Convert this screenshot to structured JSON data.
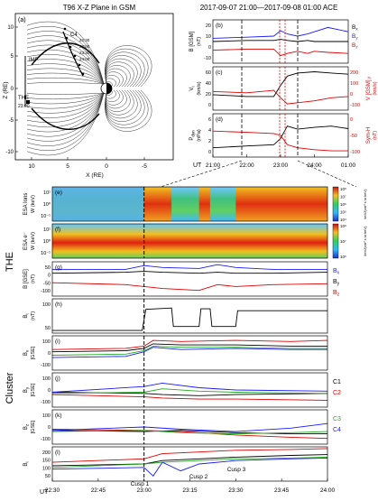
{
  "panel_a": {
    "title": "T96  X-Z Plane in GSM",
    "label": "(a)",
    "ylabel": "Z (RE)",
    "xlabel": "X (RE)",
    "xticks": [
      "10",
      "5",
      "0",
      "-5"
    ],
    "yticks": [
      "10",
      "5",
      "0",
      "-5",
      "-10"
    ],
    "annotations": [
      "IMF",
      "THE",
      "23:00",
      "C4",
      "22:30",
      "23:00",
      "23:30",
      "24:00"
    ]
  },
  "ace": {
    "header": "2017-09-07 21:00—2017-09-08 01:00  ACE",
    "time_ticks": [
      "21:00",
      "22:00",
      "23:00",
      "24:00",
      "01:00"
    ],
    "ut_label": "UT",
    "panels": [
      {
        "label": "(b)",
        "ylabel": "B [GSM]",
        "unit": "(nT)",
        "yticks": [
          "20",
          "10",
          "0",
          "-10"
        ],
        "legend": [
          "B",
          "B",
          "B"
        ],
        "legend_subs": [
          "x",
          "y",
          "z"
        ],
        "legend_colors": [
          "#000000",
          "#1a1aff",
          "#e00000"
        ]
      },
      {
        "label": "(c)",
        "ylabel": "V",
        "ysub": "t",
        "unit": "(km/s)",
        "yticks": [
          "60",
          "40",
          "20",
          "0"
        ],
        "right_label": "V  [GSM]",
        "right_sub": "y",
        "right_unit": "(km/s)",
        "right_ticks": [
          "200",
          "100",
          "0",
          "-100"
        ]
      },
      {
        "label": "(d)",
        "ylabel": "P",
        "ysub": "dyn",
        "unit": "(nPa)",
        "yticks": [
          "6",
          "4",
          "2",
          "0"
        ],
        "right_label": "Sym-H",
        "right_unit": "(nT)",
        "right_ticks": [
          "0",
          "-50",
          "-100"
        ]
      }
    ]
  },
  "the_group_label": "THE",
  "cluster_group_label": "Cluster",
  "lower": {
    "time_ticks": [
      "22:30",
      "22:45",
      "23:00",
      "23:15",
      "23:30",
      "23:45",
      "24:00"
    ],
    "ut_label": "UT",
    "cusp_labels": [
      "Cusp 1",
      "Cusp 2",
      "Cusp 3"
    ],
    "spec_colorbar_label": "keV/(cm² s sr keV)",
    "panels": [
      {
        "label": "(e)",
        "ylabel": "ESA Ions",
        "unit": "W (keV)",
        "yticks": [
          "10¹",
          "10⁰",
          "10⁻¹"
        ],
        "cb_ticks": [
          "10⁸",
          "10⁷",
          "10⁶",
          "10⁵",
          "10⁴"
        ]
      },
      {
        "label": "(f)",
        "ylabel": "ESA e⁻",
        "unit": "W (keV)",
        "yticks": [
          "10¹",
          "10⁰",
          "10⁻¹"
        ],
        "cb_ticks": [
          "10⁸",
          "10⁷",
          "10⁶"
        ]
      },
      {
        "label": "(g)",
        "ylabel": "B [GSE]",
        "unit": "(nT)",
        "yticks": [
          "50",
          "0",
          "-50",
          "-100"
        ],
        "legend": [
          "B",
          "B",
          "B"
        ],
        "legend_subs": [
          "x",
          "y",
          "z"
        ],
        "legend_colors": [
          "#1a1aff",
          "#000000",
          "#e00000"
        ]
      },
      {
        "label": "(h)",
        "ylabel": "B",
        "ysub": "t",
        "unit": "(nT)",
        "yticks": [
          "100",
          "50"
        ]
      },
      {
        "label": "(i)",
        "ylabel": "B",
        "ysub": "x",
        "unit": "[GSE]",
        "yticks": [
          "100",
          "0",
          "-100"
        ]
      },
      {
        "label": "(j)",
        "ylabel": "B",
        "ysub": "y",
        "unit": "[GSE]",
        "yticks": [
          "100",
          "0",
          "-100"
        ],
        "legend": [
          "C1",
          "C2"
        ],
        "legend_colors": [
          "#000000",
          "#e00000"
        ]
      },
      {
        "label": "(k)",
        "ylabel": "B",
        "ysub": "z",
        "unit": "[GSE]",
        "yticks": [
          "100",
          "0",
          "-100"
        ],
        "legend": [
          "C3",
          "C4"
        ],
        "legend_colors": [
          "#22aa22",
          "#1a1aff"
        ]
      },
      {
        "label": "(l)",
        "ylabel": "B",
        "ysub": "t",
        "unit": "",
        "yticks": [
          "200",
          "150",
          "100",
          "50"
        ]
      }
    ]
  },
  "colors": {
    "black": "#000000",
    "blue": "#1a1aff",
    "red": "#e00000",
    "green": "#22aa22",
    "spec_low": "#30b8ff",
    "spec_mid": "#30d060",
    "spec_high": "#f0c020",
    "spec_max": "#e02010"
  },
  "chart_data": [
    {
      "id": "ace_b",
      "type": "line",
      "x_unit": "hours UT",
      "xlim": [
        21,
        25
      ],
      "ylim": [
        -15,
        25
      ],
      "series": [
        {
          "name": "Bx",
          "color": "#000000",
          "x": [
            21,
            22,
            22.8,
            23.0,
            23.2,
            23.5,
            23.8,
            24,
            24.4,
            25
          ],
          "y": [
            5,
            6,
            6,
            7,
            6,
            5,
            6,
            5,
            5,
            5
          ]
        },
        {
          "name": "By",
          "color": "#1a1aff",
          "x": [
            21,
            22,
            22.8,
            23.0,
            23.2,
            23.5,
            23.8,
            24,
            24.4,
            25
          ],
          "y": [
            8,
            9,
            10,
            15,
            12,
            10,
            12,
            14,
            18,
            14
          ]
        },
        {
          "name": "Bz",
          "color": "#e00000",
          "x": [
            21,
            22,
            22.8,
            23.0,
            23.2,
            23.5,
            23.8,
            24,
            24.4,
            25
          ],
          "y": [
            -3,
            -2,
            -2,
            -8,
            -6,
            -4,
            -6,
            -4,
            -5,
            -6
          ]
        }
      ]
    },
    {
      "id": "ace_v",
      "type": "line",
      "x_unit": "hours UT",
      "xlim": [
        21,
        25
      ],
      "ylim": [
        0,
        70
      ],
      "series": [
        {
          "name": "Vt",
          "color": "#000000",
          "x": [
            21,
            22,
            22.8,
            23.0,
            23.2,
            23.5,
            24,
            24.5,
            25
          ],
          "y": [
            25,
            22,
            22,
            40,
            55,
            60,
            62,
            60,
            58
          ]
        },
        {
          "name": "Vy [GSM]",
          "color": "#e00000",
          "x": [
            21,
            22,
            22.8,
            23.0,
            23.2,
            23.5,
            24,
            24.5,
            25
          ],
          "y": [
            30,
            28,
            32,
            20,
            10,
            12,
            15,
            20,
            22
          ]
        }
      ]
    },
    {
      "id": "ace_p",
      "type": "line",
      "x_unit": "hours UT",
      "xlim": [
        21,
        25
      ],
      "ylim": [
        0,
        7
      ],
      "series": [
        {
          "name": "Pdyn",
          "color": "#000000",
          "x": [
            21,
            22,
            22.8,
            23.0,
            23.2,
            23.5,
            24,
            24.5,
            25
          ],
          "y": [
            1.5,
            1.8,
            2.0,
            3.0,
            5.0,
            4.5,
            4.8,
            5.0,
            4.6
          ]
        },
        {
          "name": "Sym-H",
          "color": "#e00000",
          "x": [
            21,
            22,
            22.8,
            23.0,
            23.2,
            23.5,
            24,
            24.5,
            25
          ],
          "y": [
            4.2,
            4.0,
            3.8,
            3.5,
            2.0,
            1.5,
            1.2,
            1.0,
            1.0
          ]
        }
      ]
    },
    {
      "id": "the_b",
      "type": "line",
      "x_unit": "hours UT",
      "xlim": [
        22.5,
        24
      ],
      "ylim": [
        -120,
        60
      ],
      "series": [
        {
          "name": "Bx",
          "color": "#1a1aff",
          "x": [
            22.5,
            22.9,
            23.0,
            23.1,
            23.3,
            23.4,
            23.5,
            23.7,
            24
          ],
          "y": [
            20,
            20,
            40,
            30,
            25,
            45,
            30,
            20,
            20
          ]
        },
        {
          "name": "By",
          "color": "#000000",
          "x": [
            22.5,
            22.9,
            23.0,
            23.1,
            23.3,
            23.4,
            23.5,
            23.7,
            24
          ],
          "y": [
            0,
            5,
            10,
            5,
            0,
            5,
            0,
            0,
            5
          ]
        },
        {
          "name": "Bz",
          "color": "#e00000",
          "x": [
            22.5,
            22.9,
            23.0,
            23.1,
            23.3,
            23.4,
            23.5,
            23.7,
            24
          ],
          "y": [
            -50,
            -60,
            -70,
            -80,
            -90,
            -60,
            -70,
            -60,
            -55
          ]
        }
      ]
    },
    {
      "id": "the_bt",
      "type": "line",
      "x_unit": "hours UT",
      "xlim": [
        22.5,
        24
      ],
      "ylim": [
        0,
        130
      ],
      "series": [
        {
          "name": "Bt",
          "color": "#000000",
          "x": [
            22.5,
            22.99,
            23.01,
            23.15,
            23.16,
            23.3,
            23.31,
            23.36,
            23.37,
            23.5,
            23.51,
            24
          ],
          "y": [
            10,
            10,
            90,
            95,
            25,
            25,
            92,
            92,
            25,
            25,
            85,
            85
          ]
        }
      ]
    },
    {
      "id": "cluster_bx",
      "type": "line",
      "x_unit": "hours UT",
      "xlim": [
        22.5,
        24
      ],
      "ylim": [
        -150,
        150
      ],
      "series": [
        {
          "name": "C1",
          "color": "#000000",
          "x": [
            22.5,
            22.9,
            23.0,
            23.05,
            23.2,
            23.5,
            23.8,
            24
          ],
          "y": [
            10,
            20,
            40,
            80,
            70,
            70,
            60,
            60
          ]
        },
        {
          "name": "C2",
          "color": "#e00000",
          "x": [
            22.5,
            22.9,
            23.0,
            23.05,
            23.2,
            23.5,
            23.8,
            24
          ],
          "y": [
            30,
            40,
            60,
            110,
            100,
            110,
            100,
            110
          ]
        },
        {
          "name": "C3",
          "color": "#22aa22",
          "x": [
            22.5,
            22.9,
            23.0,
            23.05,
            23.2,
            23.5,
            23.8,
            24
          ],
          "y": [
            -20,
            -10,
            20,
            60,
            50,
            50,
            40,
            40
          ]
        },
        {
          "name": "C4",
          "color": "#1a1aff",
          "x": [
            22.5,
            22.9,
            23.0,
            23.05,
            23.2,
            23.5,
            23.8,
            24
          ],
          "y": [
            -40,
            -30,
            10,
            50,
            30,
            40,
            30,
            30
          ]
        }
      ]
    },
    {
      "id": "cluster_by",
      "type": "line",
      "x_unit": "hours UT",
      "xlim": [
        22.5,
        24
      ],
      "ylim": [
        -150,
        150
      ],
      "series": [
        {
          "name": "C1",
          "color": "#000000",
          "x": [
            22.5,
            23.0,
            23.1,
            23.3,
            23.5,
            24
          ],
          "y": [
            -20,
            -30,
            -40,
            -50,
            -40,
            -30
          ]
        },
        {
          "name": "C2",
          "color": "#e00000",
          "x": [
            22.5,
            23.0,
            23.1,
            23.3,
            23.5,
            24
          ],
          "y": [
            -40,
            -60,
            -70,
            -80,
            -80,
            -90
          ]
        },
        {
          "name": "C3",
          "color": "#22aa22",
          "x": [
            22.5,
            23.0,
            23.1,
            23.3,
            23.5,
            24
          ],
          "y": [
            -30,
            -20,
            10,
            -10,
            -20,
            -30
          ]
        },
        {
          "name": "C4",
          "color": "#1a1aff",
          "x": [
            22.5,
            23.0,
            23.1,
            23.3,
            23.5,
            24
          ],
          "y": [
            -20,
            30,
            60,
            20,
            0,
            -10
          ]
        }
      ]
    },
    {
      "id": "cluster_bz",
      "type": "line",
      "x_unit": "hours UT",
      "xlim": [
        22.5,
        24
      ],
      "ylim": [
        -150,
        150
      ],
      "series": [
        {
          "name": "C1",
          "color": "#000000",
          "x": [
            22.5,
            23.0,
            23.2,
            23.5,
            23.8,
            24
          ],
          "y": [
            -30,
            -40,
            -30,
            -50,
            -60,
            -60
          ]
        },
        {
          "name": "C2",
          "color": "#e00000",
          "x": [
            22.5,
            23.0,
            23.2,
            23.5,
            23.8,
            24
          ],
          "y": [
            -20,
            -30,
            -40,
            -70,
            -90,
            -100
          ]
        },
        {
          "name": "C3",
          "color": "#22aa22",
          "x": [
            22.5,
            23.0,
            23.2,
            23.5,
            23.8,
            24
          ],
          "y": [
            -40,
            -30,
            -50,
            -60,
            -50,
            -40
          ]
        },
        {
          "name": "C4",
          "color": "#1a1aff",
          "x": [
            22.5,
            23.0,
            23.2,
            23.5,
            23.8,
            24
          ],
          "y": [
            -30,
            0,
            -20,
            -40,
            -10,
            30
          ]
        }
      ]
    },
    {
      "id": "cluster_bt",
      "type": "line",
      "x_unit": "hours UT",
      "xlim": [
        22.5,
        24
      ],
      "ylim": [
        30,
        230
      ],
      "series": [
        {
          "name": "C1",
          "color": "#000000",
          "x": [
            22.5,
            23.0,
            23.1,
            23.3,
            23.5,
            23.8,
            24
          ],
          "y": [
            120,
            130,
            150,
            160,
            170,
            180,
            185
          ]
        },
        {
          "name": "C2",
          "color": "#e00000",
          "x": [
            22.5,
            23.0,
            23.1,
            23.3,
            23.5,
            23.8,
            24
          ],
          "y": [
            140,
            160,
            190,
            200,
            210,
            215,
            220
          ]
        },
        {
          "name": "C3",
          "color": "#22aa22",
          "x": [
            22.5,
            23.0,
            23.1,
            23.3,
            23.5,
            23.8,
            24
          ],
          "y": [
            110,
            130,
            140,
            150,
            160,
            165,
            170
          ]
        },
        {
          "name": "C4",
          "color": "#1a1aff",
          "x": [
            22.5,
            23.0,
            23.05,
            23.1,
            23.2,
            23.3,
            23.5,
            23.8,
            24
          ],
          "y": [
            100,
            110,
            60,
            140,
            90,
            130,
            150,
            160,
            165
          ]
        }
      ]
    }
  ]
}
